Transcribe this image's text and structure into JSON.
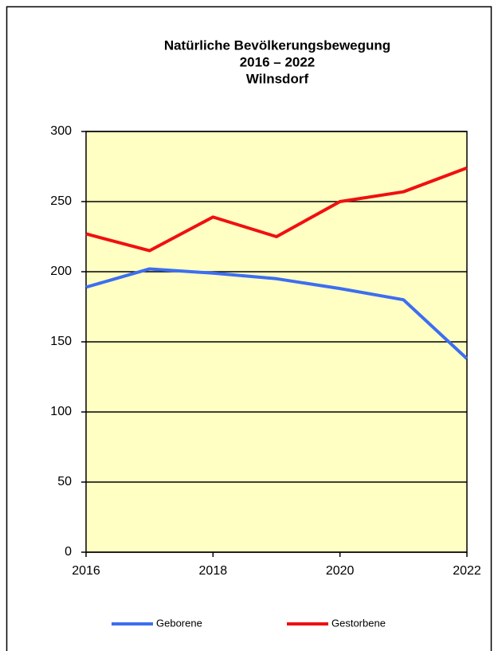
{
  "chart_data": {
    "type": "line",
    "title": [
      "Natürliche Bevölkerungsbewegung",
      "2016 – 2022",
      "Wilnsdorf"
    ],
    "x": [
      2016,
      2017,
      2018,
      2019,
      2020,
      2021,
      2022
    ],
    "series": [
      {
        "name": "Geborene",
        "color": "#3d6ef0",
        "values": [
          189,
          202,
          199,
          195,
          188,
          180,
          138
        ]
      },
      {
        "name": "Gestorbene",
        "color": "#f01010",
        "values": [
          227,
          215,
          239,
          225,
          250,
          257,
          274
        ]
      }
    ],
    "xlim": [
      2016,
      2022
    ],
    "xticks": [
      2016,
      2018,
      2020,
      2022
    ],
    "ylim": [
      0,
      300
    ],
    "yticks": [
      0,
      50,
      100,
      150,
      200,
      250,
      300
    ],
    "grid": true,
    "legend": "bottom",
    "background": "#ffffc4"
  }
}
